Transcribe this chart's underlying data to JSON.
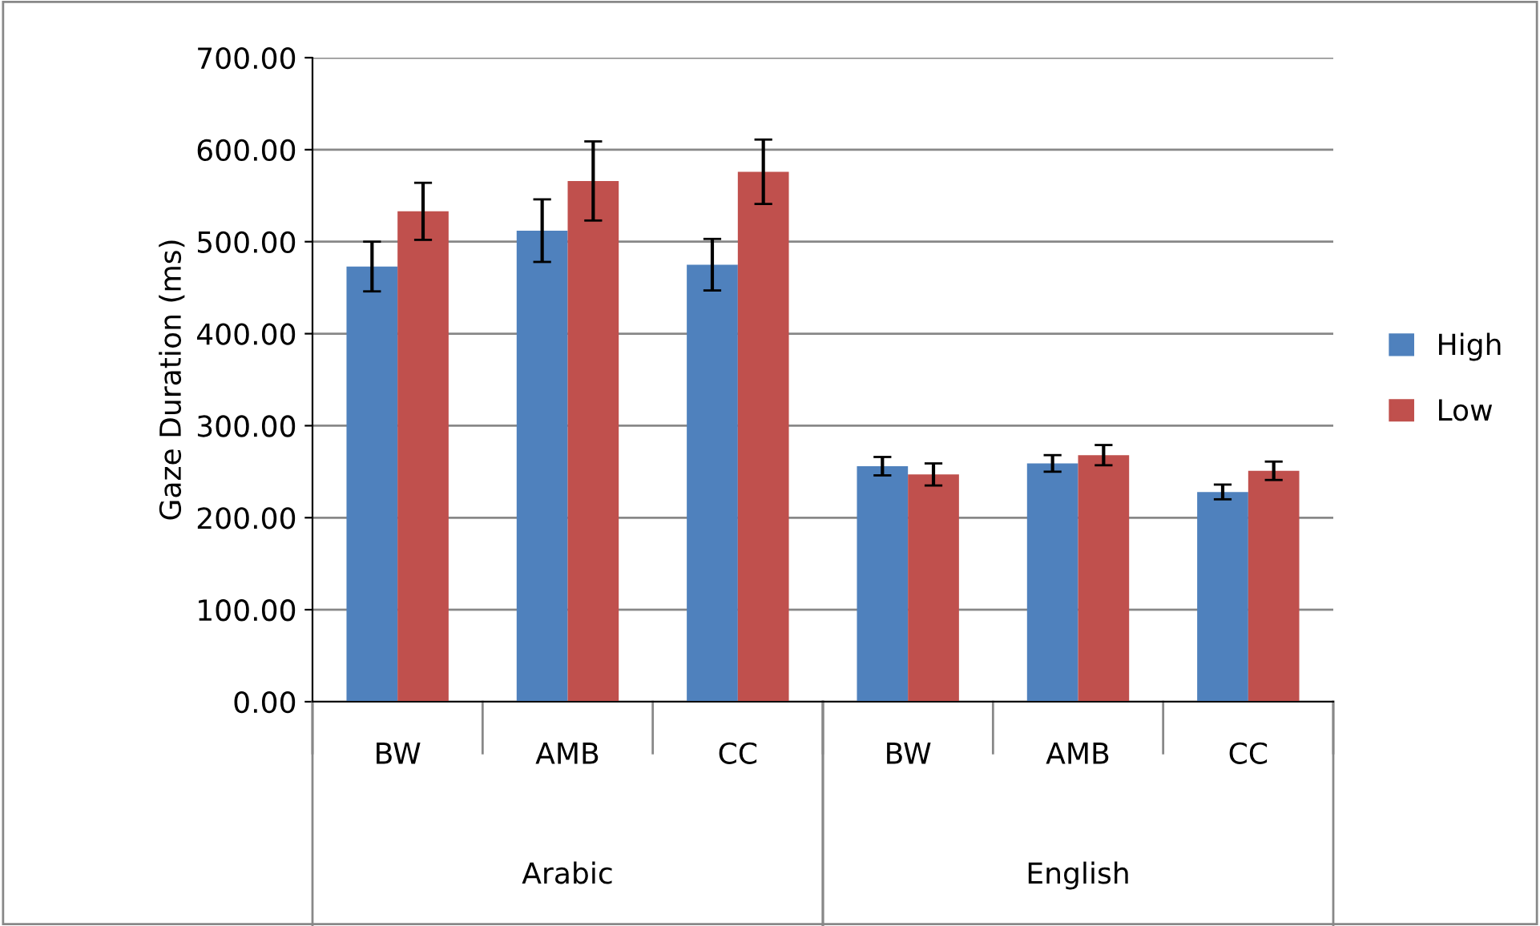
{
  "chart_data": {
    "type": "bar",
    "ylabel": "Gaze Duration (ms)",
    "categories": [
      "BW",
      "AMB",
      "CC",
      "BW",
      "AMB",
      "CC"
    ],
    "annotations": [
      "Arabic",
      "English"
    ],
    "series": [
      {
        "name": "High",
        "color": "#4f81bd",
        "values": [
          473,
          512,
          475,
          256,
          259,
          228
        ],
        "errors": [
          27,
          34,
          28,
          10,
          9,
          8
        ]
      },
      {
        "name": "Low",
        "color": "#c0504d",
        "values": [
          533,
          566,
          576,
          247,
          268,
          251
        ],
        "errors": [
          31,
          43,
          35,
          12,
          11,
          10
        ]
      }
    ],
    "ylim": [
      0,
      700
    ],
    "yticks": [
      {
        "value": 0,
        "label": "0.00"
      },
      {
        "value": 100,
        "label": "100.00"
      },
      {
        "value": 200,
        "label": "200.00"
      },
      {
        "value": 300,
        "label": "300.00"
      },
      {
        "value": 400,
        "label": "400.00"
      },
      {
        "value": 500,
        "label": "500.00"
      },
      {
        "value": 600,
        "label": "600.00"
      },
      {
        "value": 700,
        "label": "700.00"
      }
    ],
    "grid": "y",
    "legend": "right"
  }
}
